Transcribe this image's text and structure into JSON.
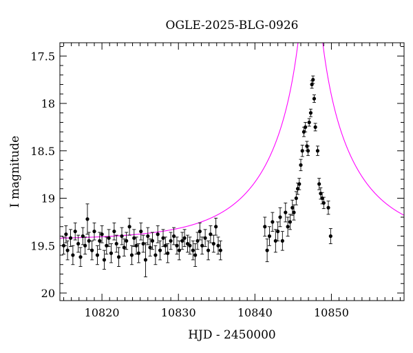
{
  "chart_data": {
    "type": "scatter",
    "title": "OGLE-2025-BLG-0926",
    "xlabel": "HJD - 2450000",
    "ylabel": "I magnitude",
    "xlim": [
      10814.5,
      10859.5
    ],
    "ylim": [
      20.08,
      17.36
    ],
    "y_inverted": true,
    "x_ticks": [
      10820,
      10830,
      10840,
      10850
    ],
    "x_tick_labels": [
      "10820",
      "10830",
      "10840",
      "10850"
    ],
    "y_ticks": [
      17.5,
      18,
      18.5,
      19,
      19.5,
      20
    ],
    "y_tick_labels": [
      "17.5",
      "18",
      "18.5",
      "19",
      "19.5",
      "20"
    ],
    "grid": false,
    "colors": {
      "data": "#000000",
      "model": "#ff00ff"
    },
    "series": [
      {
        "kind": "points_with_errorbars",
        "x": [
          10815.0,
          10815.3,
          10815.5,
          10815.9,
          10816.2,
          10816.5,
          10816.9,
          10817.2,
          10817.5,
          10817.8,
          10818.1,
          10818.3,
          10818.7,
          10819.0,
          10819.4,
          10819.7,
          10820.0,
          10820.3,
          10820.6,
          10820.9,
          10821.2,
          10821.6,
          10821.9,
          10822.2,
          10822.6,
          10822.9,
          10823.2,
          10823.6,
          10823.9,
          10824.2,
          10824.5,
          10824.8,
          10825.1,
          10825.4,
          10825.7,
          10826.0,
          10826.3,
          10826.6,
          10827.0,
          10827.3,
          10827.6,
          10828.0,
          10828.3,
          10828.6,
          10829.0,
          10829.4,
          10829.8,
          10830.1,
          10830.5,
          10830.8,
          10831.2,
          10831.5,
          10831.9,
          10832.2,
          10832.5,
          10832.8,
          10833.1,
          10833.5,
          10833.9,
          10834.2,
          10834.6,
          10834.9,
          10835.2,
          10835.5,
          10841.3,
          10841.6,
          10841.9,
          10842.3,
          10842.7,
          10843.0,
          10843.3,
          10843.6,
          10844.0,
          10844.3,
          10844.6,
          10844.9,
          10845.1,
          10845.4,
          10845.6,
          10845.8,
          10846.0,
          10846.2,
          10846.4,
          10846.6,
          10846.8,
          10846.95,
          10847.1,
          10847.3,
          10847.45,
          10847.6,
          10847.75,
          10847.9,
          10848.2,
          10848.4,
          10848.6,
          10848.8,
          10849.0,
          10849.6,
          10849.9
        ],
        "y": [
          19.5,
          19.38,
          19.55,
          19.42,
          19.6,
          19.35,
          19.48,
          19.62,
          19.4,
          19.5,
          19.22,
          19.45,
          19.55,
          19.35,
          19.6,
          19.45,
          19.38,
          19.65,
          19.5,
          19.42,
          19.58,
          19.35,
          19.48,
          19.62,
          19.4,
          19.52,
          19.45,
          19.3,
          19.6,
          19.42,
          19.5,
          19.58,
          19.35,
          19.48,
          19.65,
          19.4,
          19.52,
          19.45,
          19.6,
          19.38,
          19.55,
          19.42,
          19.5,
          19.58,
          19.45,
          19.4,
          19.5,
          19.55,
          19.45,
          19.42,
          19.48,
          19.5,
          19.55,
          19.6,
          19.45,
          19.35,
          19.5,
          19.42,
          19.55,
          19.38,
          19.48,
          19.3,
          19.5,
          19.55,
          19.3,
          19.55,
          19.4,
          19.25,
          19.45,
          19.35,
          19.2,
          19.45,
          19.15,
          19.3,
          19.25,
          19.1,
          19.15,
          19.0,
          18.9,
          18.85,
          18.65,
          18.5,
          18.3,
          18.25,
          18.45,
          18.5,
          18.2,
          18.1,
          17.8,
          17.75,
          17.95,
          18.25,
          18.5,
          18.85,
          18.95,
          19.0,
          19.05,
          19.1,
          19.4
        ],
        "yerr": [
          0.09,
          0.09,
          0.1,
          0.09,
          0.1,
          0.09,
          0.09,
          0.1,
          0.09,
          0.09,
          0.16,
          0.09,
          0.1,
          0.09,
          0.1,
          0.09,
          0.09,
          0.1,
          0.09,
          0.09,
          0.1,
          0.09,
          0.09,
          0.1,
          0.09,
          0.09,
          0.09,
          0.09,
          0.1,
          0.09,
          0.09,
          0.1,
          0.09,
          0.09,
          0.18,
          0.09,
          0.09,
          0.09,
          0.1,
          0.09,
          0.1,
          0.09,
          0.09,
          0.1,
          0.09,
          0.09,
          0.09,
          0.1,
          0.09,
          0.09,
          0.09,
          0.09,
          0.1,
          0.12,
          0.09,
          0.09,
          0.09,
          0.09,
          0.1,
          0.09,
          0.09,
          0.09,
          0.09,
          0.1,
          0.1,
          0.12,
          0.1,
          0.1,
          0.12,
          0.1,
          0.1,
          0.1,
          0.1,
          0.1,
          0.08,
          0.08,
          0.08,
          0.07,
          0.06,
          0.06,
          0.06,
          0.06,
          0.05,
          0.05,
          0.05,
          0.05,
          0.04,
          0.04,
          0.04,
          0.04,
          0.04,
          0.04,
          0.05,
          0.06,
          0.06,
          0.06,
          0.06,
          0.07,
          0.08
        ]
      },
      {
        "kind": "model_curve",
        "t0": 10847.25,
        "u0": 0.02,
        "tE": 11.0,
        "baseline_mag": 19.44
      }
    ]
  }
}
